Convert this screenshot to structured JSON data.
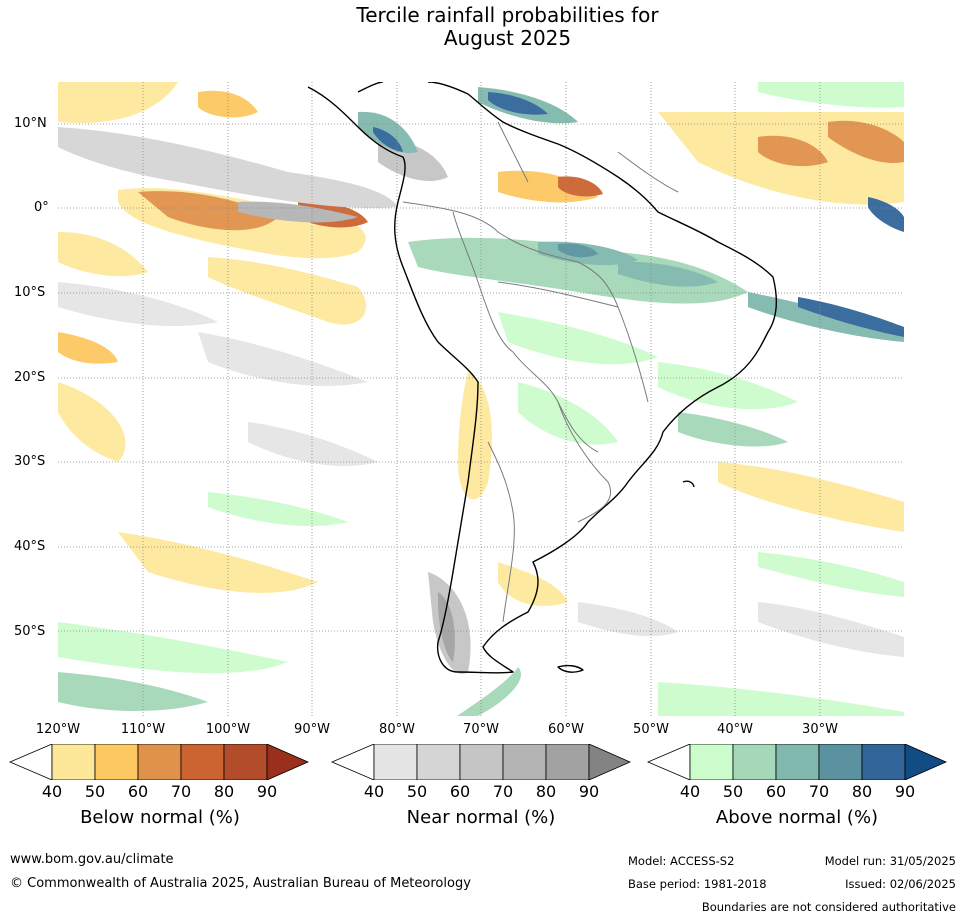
{
  "title_line1": "Tercile rainfall probabilities for",
  "title_line2": "August 2025",
  "map": {
    "lat_labels": [
      "10°N",
      "0°",
      "10°S",
      "20°S",
      "30°S",
      "40°S",
      "50°S"
    ],
    "lon_labels": [
      "120°W",
      "110°W",
      "100°W",
      "90°W",
      "80°W",
      "70°W",
      "60°W",
      "50°W",
      "40°W",
      "30°W"
    ]
  },
  "colorbars": [
    {
      "title": "Below normal (%)",
      "ticks": [
        "40",
        "50",
        "60",
        "70",
        "80",
        "90"
      ],
      "colors": [
        "#ffffff",
        "#fde89a",
        "#fdc861",
        "#e0914a",
        "#cc6431",
        "#b34c2a",
        "#992f1c"
      ]
    },
    {
      "title": "Near normal (%)",
      "ticks": [
        "40",
        "50",
        "60",
        "70",
        "80",
        "90"
      ],
      "colors": [
        "#ffffff",
        "#e5e5e5",
        "#d5d5d5",
        "#c5c5c5",
        "#b4b4b4",
        "#a2a2a2",
        "#838383"
      ]
    },
    {
      "title": "Above normal (%)",
      "ticks": [
        "40",
        "50",
        "60",
        "70",
        "80",
        "90"
      ],
      "colors": [
        "#ffffff",
        "#ccfccc",
        "#a5d8b8",
        "#80b8ad",
        "#5a92a0",
        "#32669a",
        "#114c84"
      ]
    }
  ],
  "footer": {
    "url": "www.bom.gov.au/climate",
    "copyright": "© Commonwealth of Australia 2025, Australian Bureau of Meteorology",
    "model": "Model: ACCESS-S2",
    "base_period": "Base period: 1981-2018",
    "model_run": "Model run: 31/05/2025",
    "issued": "Issued: 02/06/2025",
    "disclaimer": "Boundaries are not considered authoritative"
  }
}
